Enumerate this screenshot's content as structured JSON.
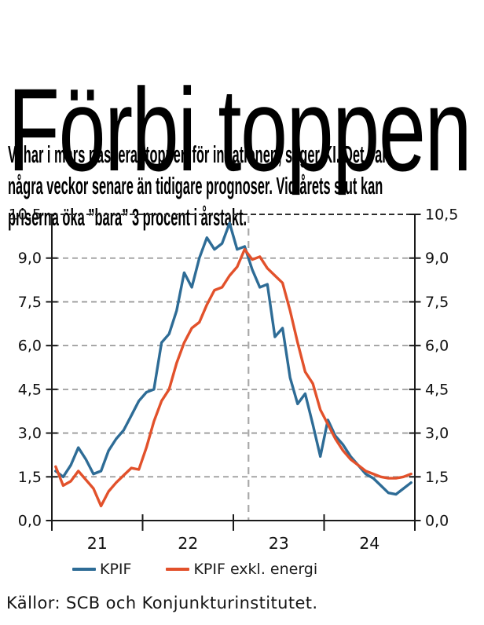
{
  "headline": "Förbi toppen",
  "intro": "Vi har i mars passerat toppen för inflationen, säger KI. Det var\nnågra veckor senare än tidigare prognoser. Vid årets slut kan\npriserna öka ”bara” 3 procent i årstakt.",
  "source_line": "Källor: SCB och Konjunkturinstitutet.",
  "colors": {
    "kpif_blue": "#2E6C96",
    "kpif_ex_energy_orange": "#E2512B",
    "gridline_gray": "#9B9B9B",
    "divider_gray": "#A9A9A9",
    "axis_black": "#1A1A1A"
  },
  "chart_data": {
    "type": "line",
    "x_unit": "month",
    "x_start": "2021-01",
    "x_end": "2024-12",
    "x_tick_labels": [
      "21",
      "22",
      "23",
      "24"
    ],
    "year_boundaries": [
      0,
      12,
      24,
      36,
      48
    ],
    "ylim": [
      0,
      10.5
    ],
    "y_ticks": [
      {
        "value": 0.0,
        "label": "0,0"
      },
      {
        "value": 1.5,
        "label": "1,5"
      },
      {
        "value": 3.0,
        "label": "3,0"
      },
      {
        "value": 4.5,
        "label": "4,5"
      },
      {
        "value": 6.0,
        "label": "6,0"
      },
      {
        "value": 7.5,
        "label": "7,5"
      },
      {
        "value": 9.0,
        "label": "9,0"
      },
      {
        "value": 10.5,
        "label": "10,5"
      }
    ],
    "grid": "dashed horizontal, labels on both sides",
    "legend_position": "bottom",
    "vline": {
      "boundary_index": 26,
      "meaning": "mars 2023 – toppen passerad",
      "style": "dashed gray vertical"
    },
    "series": [
      {
        "name": "KPIF",
        "color": "#2E6C96",
        "values": [
          1.7,
          1.5,
          1.9,
          2.5,
          2.1,
          1.6,
          1.7,
          2.4,
          2.8,
          3.1,
          3.6,
          4.1,
          4.4,
          4.5,
          6.1,
          6.4,
          7.2,
          8.5,
          8.0,
          9.0,
          9.7,
          9.3,
          9.5,
          10.2,
          9.3,
          9.4,
          8.6,
          8.0,
          8.1,
          6.3,
          6.6,
          4.9,
          4.0,
          4.35,
          3.3,
          2.2,
          3.45,
          2.9,
          2.6,
          2.2,
          1.9,
          1.6,
          1.45,
          1.2,
          0.95,
          0.9,
          1.1,
          1.3
        ]
      },
      {
        "name": "KPIF exkl. energi",
        "color": "#E2512B",
        "values": [
          1.85,
          1.2,
          1.35,
          1.7,
          1.4,
          1.1,
          0.5,
          1.0,
          1.3,
          1.55,
          1.8,
          1.75,
          2.5,
          3.4,
          4.1,
          4.5,
          5.4,
          6.1,
          6.6,
          6.8,
          7.4,
          7.9,
          8.0,
          8.4,
          8.7,
          9.3,
          8.95,
          9.05,
          8.65,
          8.4,
          8.15,
          7.2,
          6.1,
          5.1,
          4.7,
          3.8,
          3.3,
          2.8,
          2.4,
          2.1,
          1.9,
          1.7,
          1.6,
          1.5,
          1.45,
          1.45,
          1.5,
          1.6
        ]
      }
    ]
  }
}
